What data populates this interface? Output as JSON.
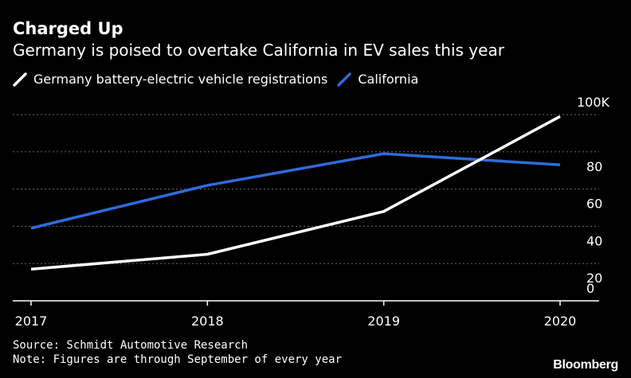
{
  "title": "Charged Up",
  "subtitle": "Germany is poised to overtake California in EV sales this year",
  "source": "Source: Schmidt Automotive Research",
  "note": "Note: Figures are through September of every year",
  "brand": "Bloomberg",
  "colors": {
    "background": "#000000",
    "germany": "#ffffff",
    "california": "#2f6bdb",
    "grid": "#6b6b6b"
  },
  "chart_data": {
    "type": "line",
    "x": [
      "2017",
      "2018",
      "2019",
      "2020"
    ],
    "series": [
      {
        "name": "Germany battery-electric vehicle registrations",
        "values": [
          17,
          25,
          48,
          99
        ],
        "color": "#ffffff"
      },
      {
        "name": "California",
        "values": [
          39,
          62,
          79,
          73
        ],
        "color": "#2f6bdb"
      }
    ],
    "ylim": [
      0,
      100
    ],
    "yticks": [
      {
        "value": 0,
        "label": "0"
      },
      {
        "value": 20,
        "label": "20"
      },
      {
        "value": 40,
        "label": "40"
      },
      {
        "value": 60,
        "label": "60"
      },
      {
        "value": 80,
        "label": "80"
      },
      {
        "value": 100,
        "label": "100K"
      }
    ],
    "grid": true,
    "y_axis_position": "right",
    "legend_position": "top-left"
  }
}
